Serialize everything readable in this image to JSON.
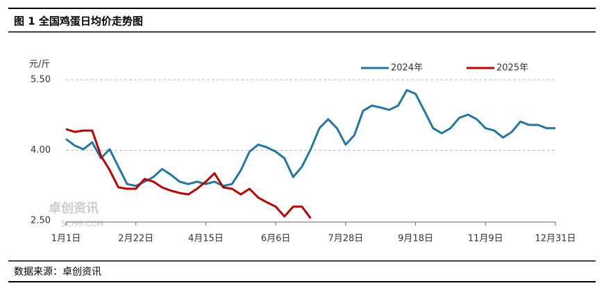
{
  "header": {
    "title": "图 1  全国鸡蛋日均价走势图"
  },
  "footer": {
    "source": "数据来源：卓创资讯"
  },
  "watermark": {
    "name": "卓创资讯",
    "site": "SCI99.COM"
  },
  "chart_data": {
    "type": "line",
    "y_label": "元/斤",
    "categories": [
      "1月1日",
      null,
      null,
      null,
      null,
      null,
      null,
      null,
      "2月22日",
      null,
      null,
      null,
      null,
      null,
      null,
      null,
      "4月15日",
      null,
      null,
      null,
      null,
      null,
      null,
      null,
      "6月6日",
      null,
      null,
      null,
      null,
      null,
      null,
      null,
      "7月28日",
      null,
      null,
      null,
      null,
      null,
      null,
      null,
      "9月18日",
      null,
      null,
      null,
      null,
      null,
      null,
      null,
      "11月9日",
      null,
      null,
      null,
      null,
      null,
      null,
      null,
      "12月31日"
    ],
    "series": [
      {
        "name": "2024年",
        "color": "#1f77a4",
        "values": [
          4.24,
          4.1,
          4.02,
          4.17,
          3.83,
          4.02,
          3.65,
          3.28,
          3.24,
          3.33,
          3.43,
          3.6,
          3.48,
          3.33,
          3.28,
          3.33,
          3.28,
          3.33,
          3.24,
          3.28,
          3.57,
          3.97,
          4.12,
          4.06,
          3.97,
          3.83,
          3.43,
          3.65,
          4.02,
          4.47,
          4.66,
          4.47,
          4.12,
          4.32,
          4.84,
          4.95,
          4.91,
          4.86,
          4.95,
          5.28,
          5.2,
          4.84,
          4.47,
          4.36,
          4.47,
          4.69,
          4.76,
          4.66,
          4.47,
          4.42,
          4.27,
          4.39,
          4.61,
          4.54,
          4.54,
          4.47,
          4.47
        ]
      },
      {
        "name": "2025年",
        "color": "#c00000",
        "values": [
          4.45,
          4.39,
          4.42,
          4.42,
          3.88,
          3.58,
          3.21,
          3.18,
          3.18,
          3.39,
          3.33,
          3.21,
          3.14,
          3.09,
          3.06,
          3.18,
          3.33,
          3.51,
          3.21,
          3.18,
          3.06,
          3.18,
          2.99,
          2.89,
          2.8,
          2.59,
          2.8,
          2.8,
          2.55,
          null,
          null,
          null,
          null,
          null,
          null,
          null,
          null,
          null,
          null,
          null,
          null,
          null,
          null,
          null,
          null,
          null,
          null,
          null,
          null,
          null,
          null,
          null,
          null,
          null,
          null,
          null,
          null
        ]
      }
    ],
    "ylim": [
      2.5,
      5.5
    ],
    "yticks": [
      {
        "value": 2.5,
        "label": "2.50"
      },
      {
        "value": 4.0,
        "label": "4.00"
      },
      {
        "value": 5.5,
        "label": "5.50"
      }
    ],
    "grid": true,
    "legend": "top"
  }
}
